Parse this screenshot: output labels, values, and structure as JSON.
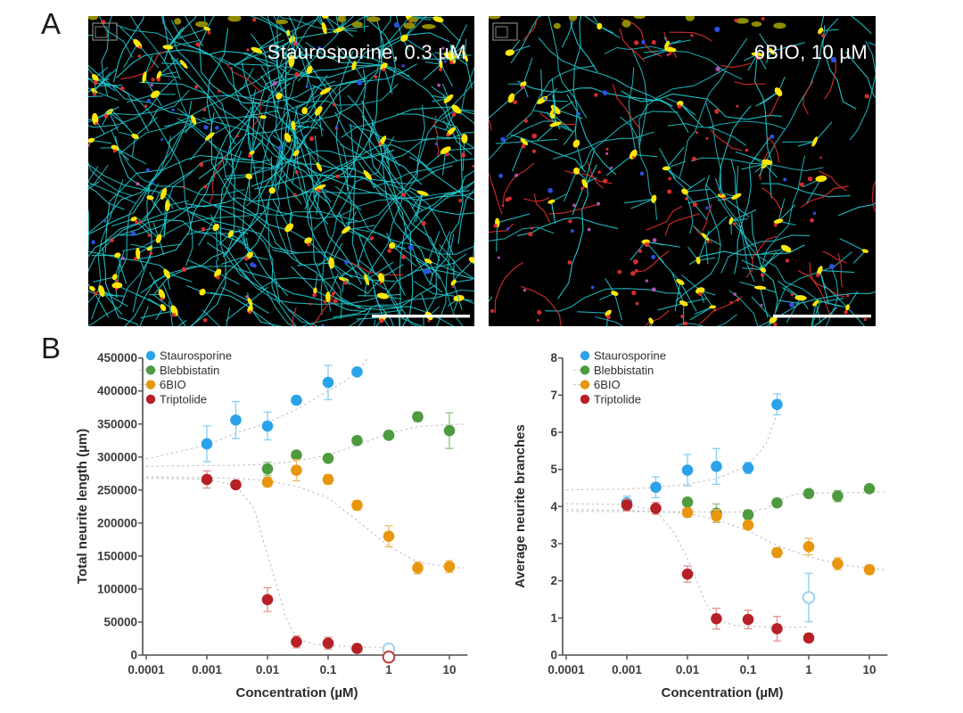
{
  "figure": {
    "panel_a_label": "A",
    "panel_b_label": "B"
  },
  "panel_a": {
    "images": [
      {
        "title": "Staurosporine, 0.3 µM",
        "style": {
          "seed": 7,
          "web_neurites": 150,
          "seg_min": 8,
          "seg_max": 14,
          "step": 22,
          "cells": 95,
          "cell_stubs": 3,
          "top_cells": 12,
          "red_dots": 40,
          "blue_dots": 26,
          "magenta_dots": 8,
          "red_traces": 8,
          "scalebar": true
        }
      },
      {
        "title": "6BIO, 10 µM",
        "style": {
          "seed": 13,
          "web_neurites": 55,
          "seg_min": 5,
          "seg_max": 10,
          "step": 20,
          "cells": 52,
          "cell_stubs": 3,
          "top_cells": 9,
          "red_dots": 55,
          "blue_dots": 20,
          "magenta_dots": 14,
          "red_traces": 42,
          "scalebar": true
        }
      }
    ],
    "palette": {
      "background": "#000000",
      "neurite": "#1fc4ca",
      "soma": "#ffe606",
      "soma_dim": "#8f8b00",
      "nucleus_red": "#e63030",
      "nucleus_blue": "#2f55ee",
      "magenta": "#c05ac0",
      "scalebar": "#ffffff",
      "inset_outline": "#9a9a9a"
    }
  },
  "chart_data": [
    {
      "type": "scatter",
      "title": "",
      "xlabel": "Concentration (µM)",
      "ylabel": "Total neurite length (µm)",
      "x_scale": "log",
      "xlim": [
        0.0001,
        20
      ],
      "ylim": [
        0,
        450000
      ],
      "grid": false,
      "legend_position": "top-left-inside",
      "legend_dash": [
        false,
        true,
        true,
        false
      ],
      "x_ticks": {
        "values": [
          0.0001,
          0.001,
          0.01,
          0.1,
          1,
          10
        ],
        "labels": [
          "0.0001",
          "0.001",
          "0.01",
          "0.1",
          "1",
          "10"
        ]
      },
      "y_ticks": [
        0,
        50000,
        100000,
        150000,
        200000,
        250000,
        300000,
        350000,
        400000,
        450000
      ],
      "series": [
        {
          "name": "Staurosporine",
          "color": "#2aa3ea",
          "err_color": "#8fd0f5",
          "open_color": "#9ad3f2",
          "points": [
            {
              "x": 0.001,
              "y": 320000,
              "err": 27000
            },
            {
              "x": 0.003,
              "y": 356000,
              "err": 28000
            },
            {
              "x": 0.01,
              "y": 347000,
              "err": 21000
            },
            {
              "x": 0.03,
              "y": 386000,
              "err": 6000
            },
            {
              "x": 0.1,
              "y": 413000,
              "err": 26000
            },
            {
              "x": 0.3,
              "y": 429000,
              "err": 5000
            }
          ],
          "open_points": [
            {
              "x": 1,
              "y": 9000,
              "err": 0
            }
          ],
          "fit": [
            [
              0.0001,
              297000
            ],
            [
              0.001,
              318000
            ],
            [
              0.003,
              336000
            ],
            [
              0.01,
              352000
            ],
            [
              0.03,
              372000
            ],
            [
              0.1,
              400000
            ],
            [
              0.2,
              416000
            ],
            [
              0.35,
              437000
            ],
            [
              0.45,
              449000
            ]
          ]
        },
        {
          "name": "Blebbistatin",
          "color": "#4e9a3f",
          "err_color": "#93c687",
          "open_color": "#93c687",
          "points": [
            {
              "x": 0.01,
              "y": 282000,
              "err": 10000
            },
            {
              "x": 0.03,
              "y": 303000,
              "err": 6000
            },
            {
              "x": 0.1,
              "y": 298000,
              "err": 6000
            },
            {
              "x": 0.3,
              "y": 325000,
              "err": 6000
            },
            {
              "x": 1,
              "y": 333000,
              "err": 6000
            },
            {
              "x": 3,
              "y": 361000,
              "err": 7000
            },
            {
              "x": 10,
              "y": 340000,
              "err": 27000
            }
          ],
          "open_points": [],
          "fit": [
            [
              0.0001,
              286000
            ],
            [
              0.003,
              287500
            ],
            [
              0.01,
              289000
            ],
            [
              0.03,
              294000
            ],
            [
              0.1,
              303000
            ],
            [
              0.3,
              318000
            ],
            [
              1,
              336000
            ],
            [
              3,
              346000
            ],
            [
              10,
              349000
            ],
            [
              18,
              350000
            ]
          ]
        },
        {
          "name": "6BIO",
          "color": "#e8960e",
          "err_color": "#f2be66",
          "open_color": "#f2be66",
          "points": [
            {
              "x": 0.01,
              "y": 262000,
              "err": 7000
            },
            {
              "x": 0.03,
              "y": 280000,
              "err": 16000
            },
            {
              "x": 0.1,
              "y": 266000,
              "err": 7000
            },
            {
              "x": 0.3,
              "y": 227000,
              "err": 7000
            },
            {
              "x": 1,
              "y": 180000,
              "err": 16000
            },
            {
              "x": 3,
              "y": 132000,
              "err": 9000
            },
            {
              "x": 10,
              "y": 134000,
              "err": 9000
            }
          ],
          "open_points": [],
          "fit": [
            [
              0.0001,
              270000
            ],
            [
              0.003,
              268000
            ],
            [
              0.01,
              264000
            ],
            [
              0.03,
              256000
            ],
            [
              0.1,
              238000
            ],
            [
              0.3,
              204000
            ],
            [
              1,
              165000
            ],
            [
              3,
              141000
            ],
            [
              10,
              133000
            ],
            [
              18,
              132000
            ]
          ]
        },
        {
          "name": "Triptolide",
          "color": "#b72025",
          "err_color": "#e09a9a",
          "open_color": "#c23b3b",
          "points": [
            {
              "x": 0.001,
              "y": 266000,
              "err": 13000
            },
            {
              "x": 0.003,
              "y": 258000,
              "err": 5000
            },
            {
              "x": 0.01,
              "y": 84000,
              "err": 18000
            },
            {
              "x": 0.03,
              "y": 20000,
              "err": 9000
            },
            {
              "x": 0.1,
              "y": 18000,
              "err": 9000
            },
            {
              "x": 0.3,
              "y": 10000,
              "err": 6000
            }
          ],
          "open_points": [
            {
              "x": 1,
              "y": -3000,
              "err": 0
            }
          ],
          "fit": [
            [
              0.0001,
              268000
            ],
            [
              0.001,
              266000
            ],
            [
              0.003,
              257000
            ],
            [
              0.006,
              222000
            ],
            [
              0.01,
              152000
            ],
            [
              0.02,
              58000
            ],
            [
              0.03,
              25000
            ],
            [
              0.06,
              16000
            ],
            [
              0.1,
              14500
            ],
            [
              0.3,
              12500
            ],
            [
              1,
              11500
            ]
          ]
        }
      ]
    },
    {
      "type": "scatter",
      "title": "",
      "xlabel": "Concentration (µM)",
      "ylabel": "Average neurite branches",
      "x_scale": "log",
      "xlim": [
        0.0001,
        20
      ],
      "ylim": [
        0,
        8
      ],
      "grid": false,
      "legend_position": "top-left-inside",
      "legend_dash": [
        false,
        true,
        true,
        false
      ],
      "x_ticks": {
        "values": [
          0.0001,
          0.001,
          0.01,
          0.1,
          1,
          10
        ],
        "labels": [
          "0.0001",
          "0.001",
          "0.01",
          "0.1",
          "1",
          "10"
        ]
      },
      "y_ticks": [
        0,
        1,
        2,
        3,
        4,
        5,
        6,
        7,
        8
      ],
      "series": [
        {
          "name": "Staurosporine",
          "color": "#2aa3ea",
          "err_color": "#8fd0f5",
          "open_color": "#9ad3f2",
          "points": [
            {
              "x": 0.001,
              "y": 4.1,
              "err": 0.18
            },
            {
              "x": 0.003,
              "y": 4.52,
              "err": 0.28
            },
            {
              "x": 0.01,
              "y": 4.98,
              "err": 0.42
            },
            {
              "x": 0.03,
              "y": 5.08,
              "err": 0.48
            },
            {
              "x": 0.1,
              "y": 5.04,
              "err": 0.15
            },
            {
              "x": 0.3,
              "y": 6.75,
              "err": 0.28
            }
          ],
          "open_points": [
            {
              "x": 1,
              "y": 1.55,
              "err": 0.65
            }
          ],
          "fit": [
            [
              0.0001,
              4.45
            ],
            [
              0.001,
              4.47
            ],
            [
              0.003,
              4.52
            ],
            [
              0.01,
              4.6
            ],
            [
              0.03,
              4.75
            ],
            [
              0.1,
              5.1
            ],
            [
              0.2,
              5.7
            ],
            [
              0.3,
              6.5
            ],
            [
              0.35,
              7.0
            ]
          ]
        },
        {
          "name": "Blebbistatin",
          "color": "#4e9a3f",
          "err_color": "#93c687",
          "open_color": "#93c687",
          "points": [
            {
              "x": 0.01,
              "y": 4.12,
              "err": 0.1
            },
            {
              "x": 0.03,
              "y": 3.82,
              "err": 0.25
            },
            {
              "x": 0.1,
              "y": 3.78,
              "err": 0.12
            },
            {
              "x": 0.3,
              "y": 4.1,
              "err": 0.1
            },
            {
              "x": 1,
              "y": 4.35,
              "err": 0.1
            },
            {
              "x": 3,
              "y": 4.28,
              "err": 0.15
            },
            {
              "x": 10,
              "y": 4.48,
              "err": 0.1
            }
          ],
          "open_points": [],
          "fit": [
            [
              0.0001,
              3.87
            ],
            [
              0.01,
              3.86
            ],
            [
              0.1,
              3.85
            ],
            [
              0.2,
              3.95
            ],
            [
              0.3,
              4.15
            ],
            [
              0.6,
              4.33
            ],
            [
              1,
              4.36
            ],
            [
              10,
              4.38
            ],
            [
              18,
              4.4
            ]
          ]
        },
        {
          "name": "6BIO",
          "color": "#e8960e",
          "err_color": "#f2be66",
          "open_color": "#f2be66",
          "points": [
            {
              "x": 0.01,
              "y": 3.84,
              "err": 0.12
            },
            {
              "x": 0.03,
              "y": 3.75,
              "err": 0.16
            },
            {
              "x": 0.1,
              "y": 3.5,
              "err": 0.1
            },
            {
              "x": 0.3,
              "y": 2.76,
              "err": 0.12
            },
            {
              "x": 1,
              "y": 2.92,
              "err": 0.22
            },
            {
              "x": 3,
              "y": 2.46,
              "err": 0.16
            },
            {
              "x": 10,
              "y": 2.3,
              "err": 0.12
            }
          ],
          "open_points": [],
          "fit": [
            [
              0.0001,
              3.92
            ],
            [
              0.001,
              3.9
            ],
            [
              0.01,
              3.82
            ],
            [
              0.03,
              3.65
            ],
            [
              0.1,
              3.35
            ],
            [
              0.3,
              2.95
            ],
            [
              1,
              2.65
            ],
            [
              3,
              2.45
            ],
            [
              10,
              2.33
            ],
            [
              18,
              2.3
            ]
          ]
        },
        {
          "name": "Triptolide",
          "color": "#b72025",
          "err_color": "#e09a9a",
          "open_color": "#c23b3b",
          "points": [
            {
              "x": 0.001,
              "y": 4.04,
              "err": 0.16
            },
            {
              "x": 0.003,
              "y": 3.95,
              "err": 0.16
            },
            {
              "x": 0.01,
              "y": 2.18,
              "err": 0.22
            },
            {
              "x": 0.03,
              "y": 0.98,
              "err": 0.28
            },
            {
              "x": 0.1,
              "y": 0.96,
              "err": 0.25
            },
            {
              "x": 0.3,
              "y": 0.71,
              "err": 0.33
            },
            {
              "x": 1,
              "y": 0.46,
              "err": 0.12
            }
          ],
          "open_points": [],
          "fit": [
            [
              0.0001,
              4.08
            ],
            [
              0.001,
              4.05
            ],
            [
              0.003,
              3.9
            ],
            [
              0.006,
              3.3
            ],
            [
              0.01,
              2.6
            ],
            [
              0.02,
              1.4
            ],
            [
              0.03,
              0.95
            ],
            [
              0.06,
              0.8
            ],
            [
              0.1,
              0.78
            ],
            [
              0.3,
              0.75
            ],
            [
              1,
              0.75
            ]
          ]
        }
      ]
    }
  ]
}
